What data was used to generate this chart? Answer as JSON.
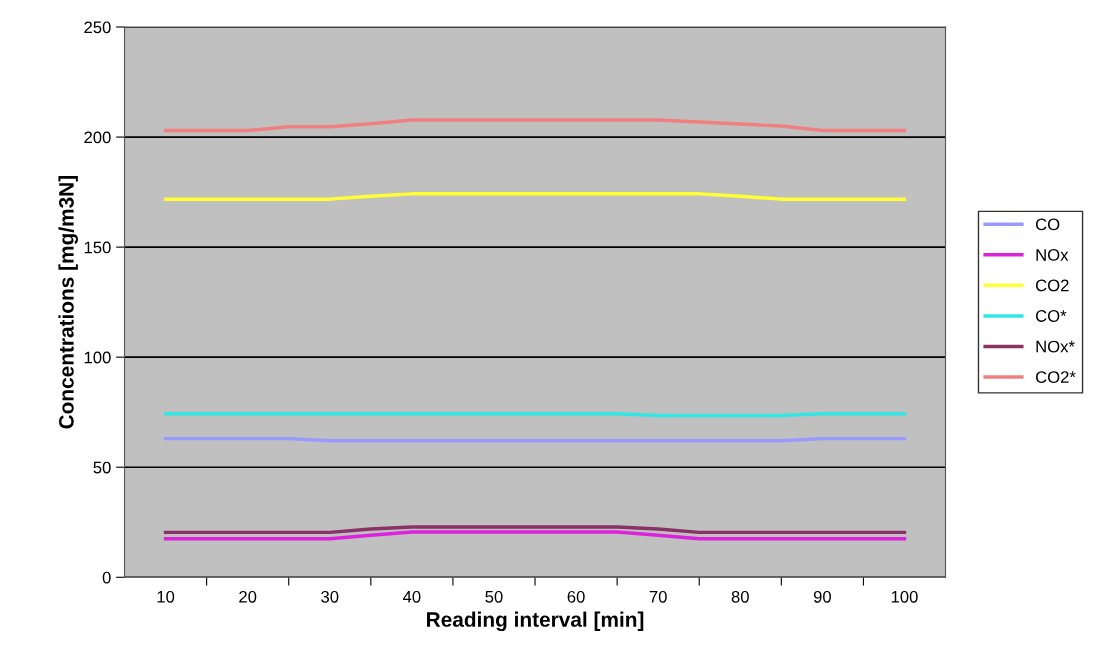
{
  "chart_data": {
    "type": "line",
    "xlabel": "Reading interval [min]",
    "ylabel": "Concentrations [mg/m3N]",
    "x": [
      10,
      15,
      20,
      25,
      30,
      35,
      40,
      45,
      50,
      55,
      60,
      65,
      70,
      75,
      80,
      85,
      90,
      95,
      100
    ],
    "xlim": [
      5,
      105
    ],
    "xticks": [
      10,
      {
        "value": 15,
        "label": null
      },
      20,
      {
        "value": 25,
        "label": null
      },
      30,
      {
        "value": 35,
        "label": null
      },
      40,
      {
        "value": 45,
        "label": null
      },
      50,
      {
        "value": 55,
        "label": null
      },
      60,
      {
        "value": 65,
        "label": null
      },
      70,
      {
        "value": 75,
        "label": null
      },
      80,
      {
        "value": 85,
        "label": null
      },
      90,
      {
        "value": 95,
        "label": null
      },
      100
    ],
    "ylim": [
      0,
      250
    ],
    "yticks": [
      0,
      50,
      100,
      150,
      200,
      250
    ],
    "grid": "y",
    "legend": "right",
    "marker": "none",
    "line_style": "solid",
    "series": [
      {
        "name": "CO",
        "color": "#9999ff",
        "values": [
          63,
          63,
          63,
          63,
          62,
          62,
          62,
          62,
          62,
          62,
          62,
          62,
          62,
          62,
          62,
          62,
          63,
          63,
          63
        ]
      },
      {
        "name": "NOx",
        "color": "#dd22dd",
        "values": [
          17.5,
          17.5,
          17.5,
          17.5,
          17.5,
          19.1,
          20.6,
          20.6,
          20.6,
          20.6,
          20.6,
          20.6,
          19.1,
          17.5,
          17.5,
          17.5,
          17.5,
          17.5,
          17.5
        ]
      },
      {
        "name": "CO2",
        "color": "#ffff33",
        "values": [
          171.8,
          171.8,
          171.8,
          171.8,
          171.8,
          173.1,
          174.2,
          174.2,
          174.2,
          174.2,
          174.2,
          174.2,
          174.2,
          174.2,
          173.1,
          171.8,
          171.8,
          171.8,
          171.8
        ]
      },
      {
        "name": "CO*",
        "color": "#33e6e6",
        "values": [
          74.3,
          74.3,
          74.3,
          74.3,
          74.3,
          74.3,
          74.3,
          74.3,
          74.3,
          74.3,
          74.3,
          74.3,
          73.5,
          73.5,
          73.5,
          73.5,
          74.3,
          74.3,
          74.3
        ]
      },
      {
        "name": "NOx*",
        "color": "#883366",
        "values": [
          20.4,
          20.4,
          20.4,
          20.4,
          20.4,
          21.9,
          22.8,
          22.8,
          22.8,
          22.8,
          22.8,
          22.8,
          21.9,
          20.4,
          20.4,
          20.4,
          20.4,
          20.4,
          20.4
        ]
      },
      {
        "name": "CO2*",
        "color": "#f08080",
        "values": [
          203,
          203,
          203,
          204.7,
          204.7,
          206.1,
          207.8,
          207.8,
          207.8,
          207.8,
          207.8,
          207.8,
          207.8,
          206.8,
          205.9,
          205,
          203,
          203,
          203
        ]
      }
    ]
  }
}
